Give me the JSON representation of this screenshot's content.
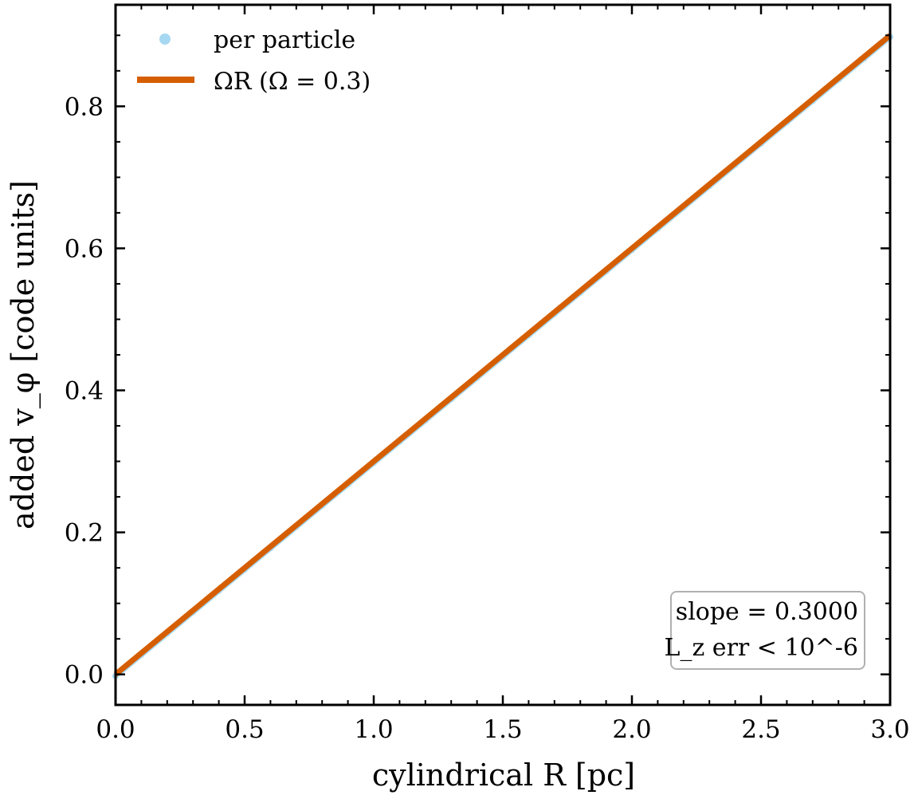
{
  "chart_data": {
    "type": "scatter",
    "xlabel": "cylindrical R [pc]",
    "ylabel": "added v_φ [code units]",
    "xlim": [
      0.0,
      3.0
    ],
    "ylim": [
      -0.043,
      0.943
    ],
    "x_ticks": [
      "0.0",
      "0.5",
      "1.0",
      "1.5",
      "2.0",
      "2.5",
      "3.0"
    ],
    "y_ticks": [
      "0.0",
      "0.2",
      "0.4",
      "0.6",
      "0.8"
    ],
    "x_tick_values": [
      0.0,
      0.5,
      1.0,
      1.5,
      2.0,
      2.5,
      3.0
    ],
    "y_tick_values": [
      0.0,
      0.2,
      0.4,
      0.6,
      0.8
    ],
    "grid": false,
    "legend_position": "upper-left",
    "series": [
      {
        "name": "per particle",
        "kind": "scatter",
        "color": "#a6d8f2",
        "x": [
          0.0,
          0.1,
          0.2,
          0.3,
          0.4,
          0.5,
          0.6,
          0.7,
          0.8,
          0.9,
          1.0,
          1.1,
          1.2,
          1.3,
          1.4,
          1.5,
          1.6,
          1.7,
          1.8,
          1.9,
          2.0,
          2.1,
          2.2,
          2.3,
          2.4,
          2.5,
          2.6,
          2.7,
          2.8,
          2.9,
          3.0
        ],
        "y": [
          0.0,
          0.03,
          0.06,
          0.09,
          0.12,
          0.15,
          0.18,
          0.21,
          0.24,
          0.27,
          0.3,
          0.33,
          0.36,
          0.39,
          0.42,
          0.45,
          0.48,
          0.51,
          0.54,
          0.57,
          0.6,
          0.63,
          0.66,
          0.69,
          0.72,
          0.75,
          0.78,
          0.81,
          0.84,
          0.87,
          0.9
        ]
      },
      {
        "name": "ΩR (Ω = 0.3)",
        "kind": "line",
        "color": "#d55e00",
        "x": [
          0.0,
          3.0
        ],
        "y": [
          0.0,
          0.9
        ]
      }
    ],
    "annotation": {
      "line1": "slope = 0.3000",
      "line2": "L_z err < 10^-6"
    }
  }
}
